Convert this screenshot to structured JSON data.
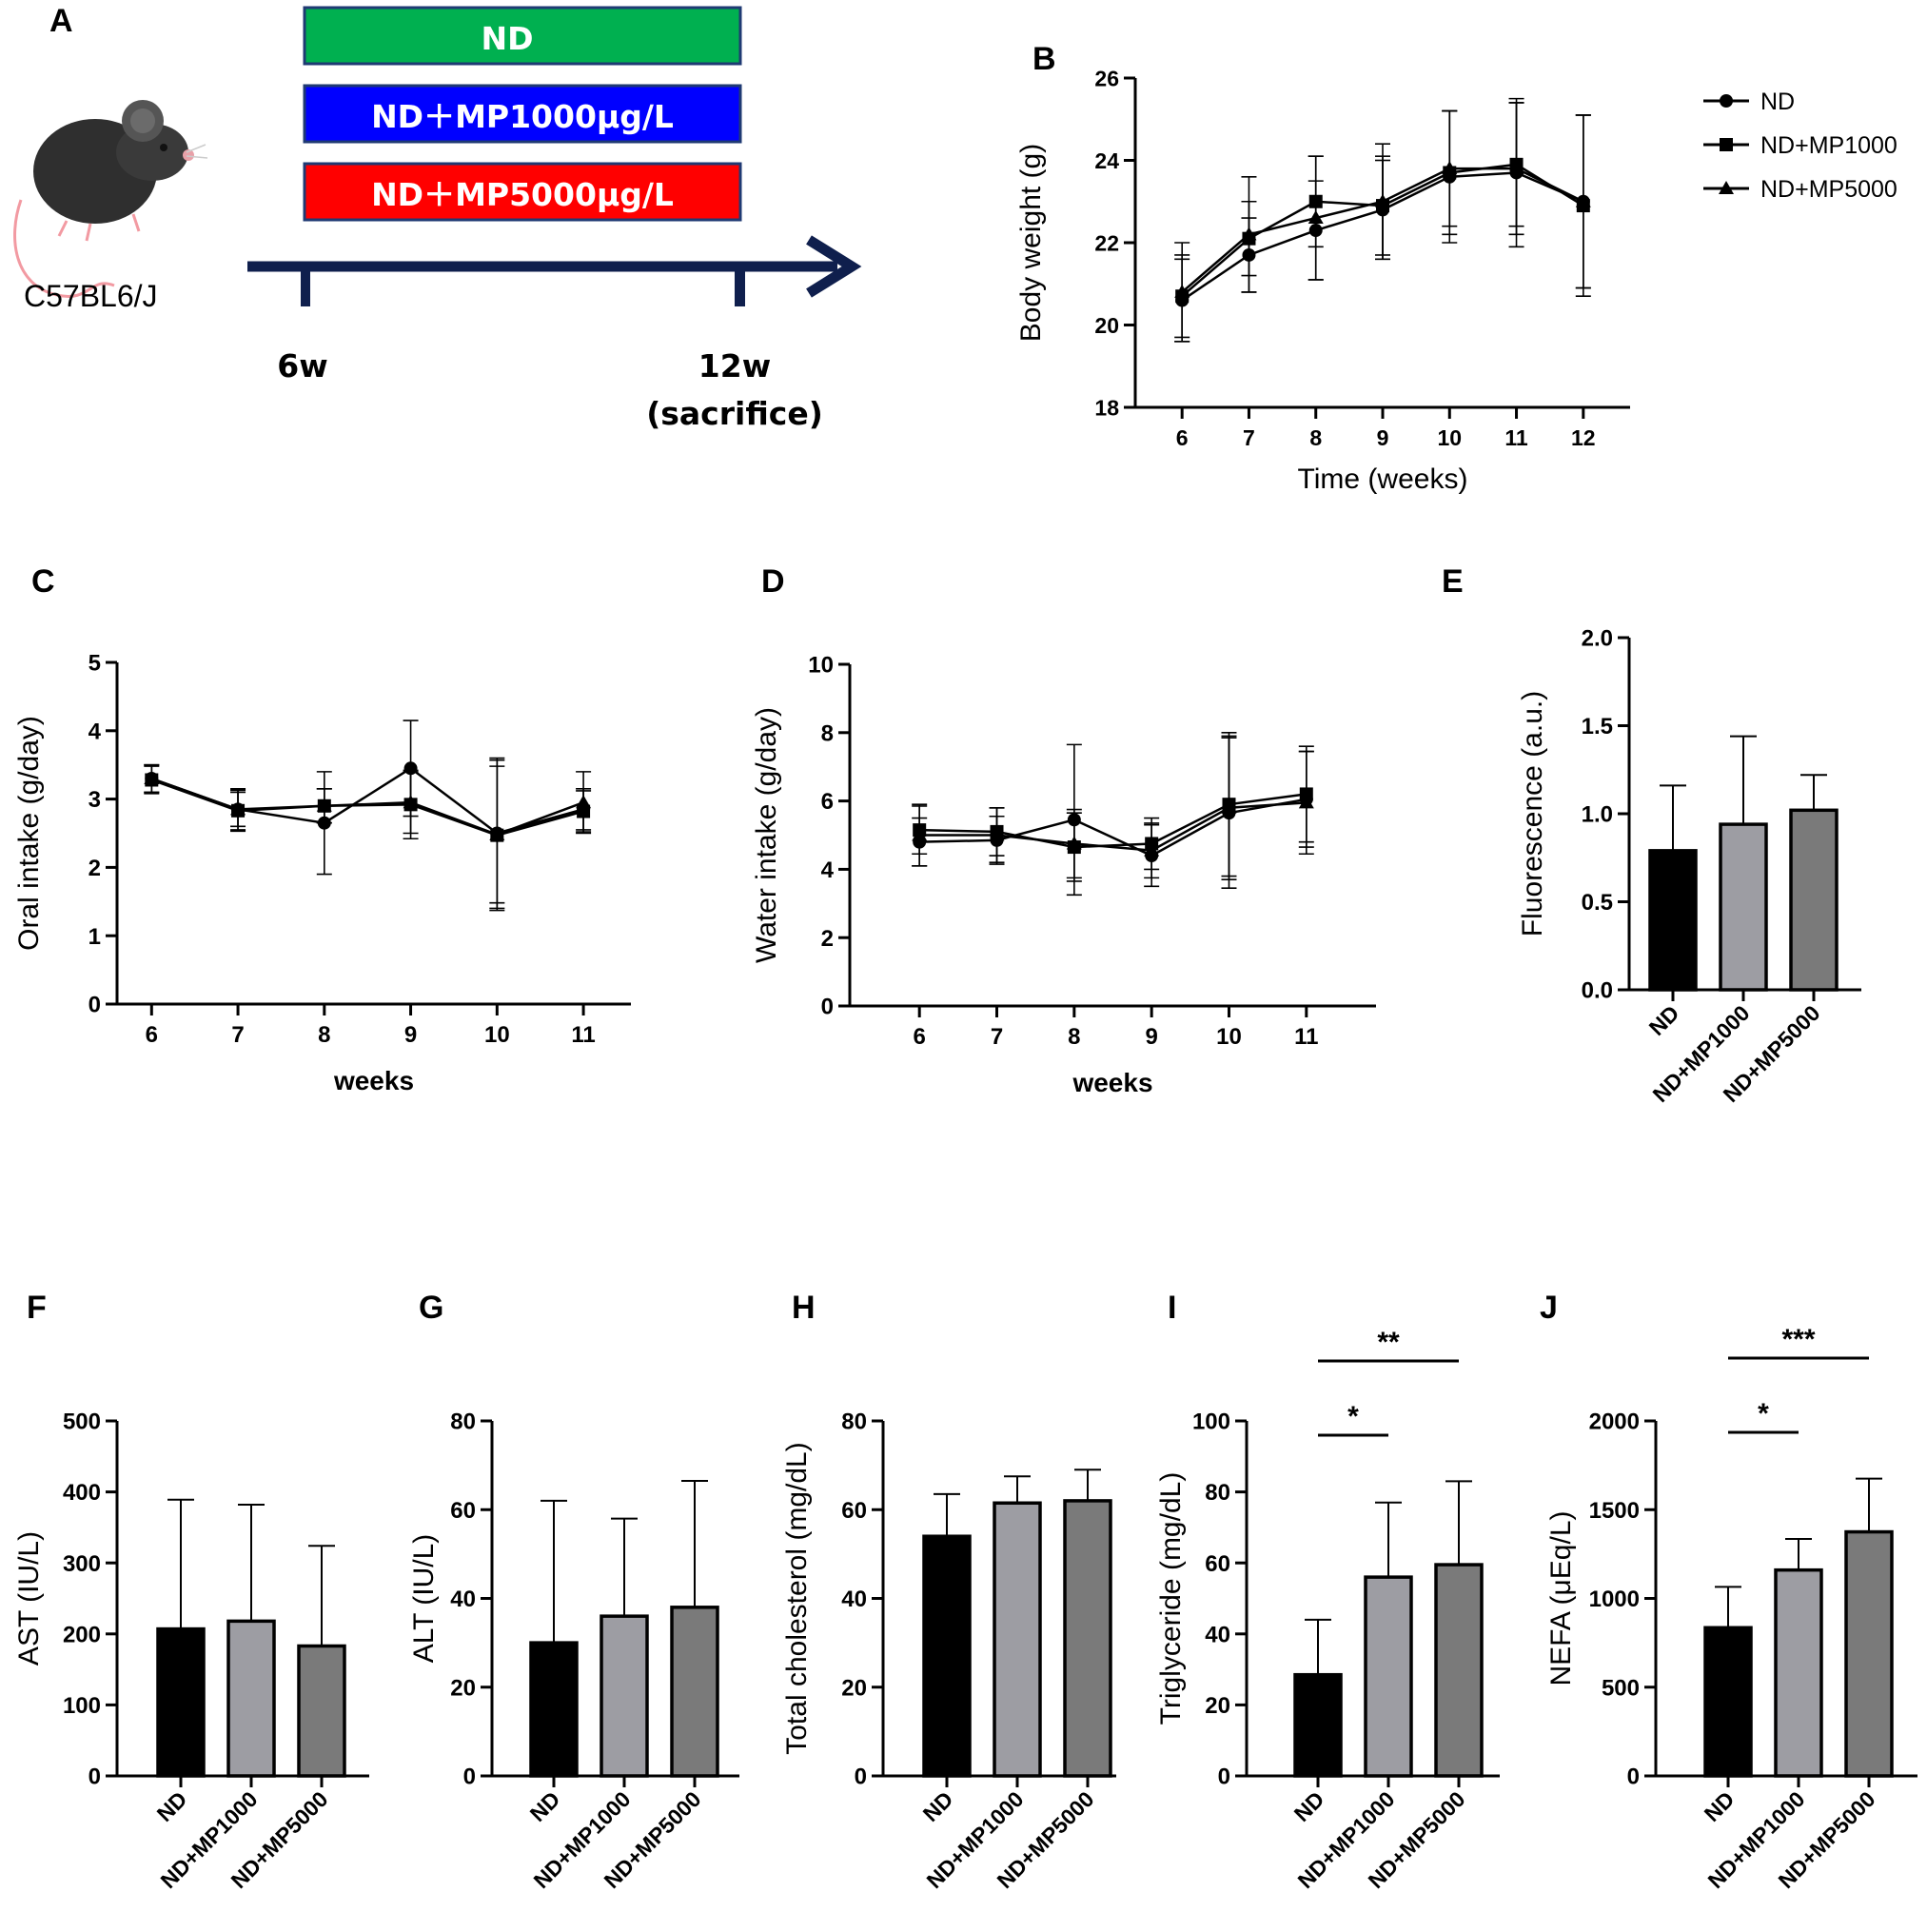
{
  "panel_letters": [
    "A",
    "B",
    "C",
    "D",
    "E",
    "F",
    "G",
    "H",
    "I",
    "J"
  ],
  "colors": {
    "nd_box": "#00b050",
    "mp1000_box": "#0000ff",
    "mp5000_box": "#ff0000",
    "timeline": "#0f1f4d",
    "nd_bar": "#000000",
    "mp1000_bar": "#9d9da3",
    "mp5000_bar": "#7a7a7a"
  },
  "design": {
    "strain": "C57BL6/J",
    "mouse_icon": "mouse-icon",
    "groups": [
      "ND",
      "ND＋MP1000µg/L",
      "ND＋MP5000µg/L"
    ],
    "start_label": "6w",
    "end_label": "12w",
    "end_sub": "(sacrifice)"
  },
  "chart_data": [
    {
      "id": "B",
      "type": "line",
      "xlabel": "Time (weeks)",
      "ylabel": "Body weight (g)",
      "x": [
        6,
        7,
        8,
        9,
        10,
        11,
        12
      ],
      "xlim": [
        5.3,
        12.7
      ],
      "ylim": [
        18,
        26
      ],
      "yticks": [
        18,
        20,
        22,
        24,
        26
      ],
      "legend": "top-right",
      "series": [
        {
          "name": "ND",
          "marker": "circle",
          "values": [
            20.6,
            21.7,
            22.3,
            22.8,
            23.6,
            23.7,
            23.0
          ],
          "err": [
            1.0,
            0.9,
            1.2,
            1.2,
            1.6,
            1.8,
            2.1
          ]
        },
        {
          "name": "ND+MP1000",
          "marker": "square",
          "values": [
            20.7,
            22.1,
            23.0,
            22.9,
            23.7,
            23.9,
            22.9
          ],
          "err": [
            1.0,
            0.9,
            1.1,
            1.2,
            1.5,
            1.5,
            2.2
          ]
        },
        {
          "name": "ND+MP5000",
          "marker": "triangle",
          "values": [
            20.8,
            22.2,
            22.6,
            23.0,
            23.8,
            23.8,
            23.0
          ],
          "err": [
            1.2,
            1.4,
            1.5,
            1.4,
            1.4,
            1.6,
            2.1
          ]
        }
      ]
    },
    {
      "id": "C",
      "type": "line",
      "xlabel": "weeks",
      "ylabel": "Oral intake (g/day)",
      "x": [
        6,
        7,
        8,
        9,
        10,
        11
      ],
      "xlim": [
        5.6,
        11.55
      ],
      "ylim": [
        0,
        5
      ],
      "yticks": [
        0,
        1,
        2,
        3,
        4,
        5
      ],
      "series": [
        {
          "name": "ND",
          "marker": "circle",
          "values": [
            3.3,
            2.85,
            2.65,
            3.45,
            2.5,
            2.85
          ],
          "err": [
            0.2,
            0.3,
            0.75,
            0.7,
            1.1,
            0.3
          ]
        },
        {
          "name": "ND+MP1000",
          "marker": "square",
          "values": [
            3.28,
            2.83,
            2.9,
            2.92,
            2.47,
            2.82
          ],
          "err": [
            0.2,
            0.3,
            0.25,
            0.5,
            1.1,
            0.3
          ]
        },
        {
          "name": "ND+MP5000",
          "marker": "triangle",
          "values": [
            3.3,
            2.85,
            2.9,
            2.95,
            2.48,
            2.95
          ],
          "err": [
            0.2,
            0.25,
            0.25,
            0.45,
            1.0,
            0.45
          ]
        }
      ]
    },
    {
      "id": "D",
      "type": "line",
      "xlabel": "weeks",
      "ylabel": "Water intake (g/day)",
      "x": [
        6,
        7,
        8,
        9,
        10,
        11
      ],
      "xlim": [
        5.1,
        11.9
      ],
      "ylim": [
        0,
        10
      ],
      "yticks": [
        0,
        2,
        4,
        6,
        8,
        10
      ],
      "series": [
        {
          "name": "ND",
          "marker": "circle",
          "values": [
            4.8,
            4.85,
            5.45,
            4.4,
            5.65,
            6.05
          ],
          "err": [
            0.7,
            0.7,
            2.2,
            0.9,
            2.2,
            1.4
          ]
        },
        {
          "name": "ND+MP1000",
          "marker": "square",
          "values": [
            5.15,
            5.1,
            4.65,
            4.75,
            5.9,
            6.2
          ],
          "err": [
            0.7,
            0.7,
            1.0,
            0.75,
            2.1,
            1.4
          ]
        },
        {
          "name": "ND+MP5000",
          "marker": "triangle",
          "values": [
            5.0,
            5.0,
            4.75,
            4.55,
            5.8,
            5.95
          ],
          "err": [
            0.9,
            0.8,
            1.0,
            0.8,
            2.1,
            1.5
          ]
        }
      ]
    },
    {
      "id": "E",
      "type": "bar",
      "ylabel": "Fluorescence (a.u.)",
      "categories": [
        "ND",
        "ND+MP1000",
        "ND+MP5000"
      ],
      "values": [
        0.79,
        0.94,
        1.02
      ],
      "err": [
        0.37,
        0.5,
        0.2
      ],
      "ylim": [
        0,
        2.0
      ],
      "yticks": [
        "0.0",
        "0.5",
        "1.0",
        "1.5",
        "2.0"
      ]
    },
    {
      "id": "F",
      "type": "bar",
      "ylabel": "AST (IU/L)",
      "categories": [
        "ND",
        "ND+MP1000",
        "ND+MP5000"
      ],
      "values": [
        207,
        218,
        183
      ],
      "err": [
        182,
        164,
        141
      ],
      "ylim": [
        0,
        500
      ],
      "yticks": [
        "0",
        "100",
        "200",
        "300",
        "400",
        "500"
      ]
    },
    {
      "id": "G",
      "type": "bar",
      "ylabel": "ALT (IU/L)",
      "categories": [
        "ND",
        "ND+MP1000",
        "ND+MP5000"
      ],
      "values": [
        30,
        36,
        38
      ],
      "err": [
        32,
        22,
        28.5
      ],
      "ylim": [
        0,
        80
      ],
      "yticks": [
        "0",
        "20",
        "40",
        "60",
        "80"
      ]
    },
    {
      "id": "H",
      "type": "bar",
      "ylabel": "Total cholesterol (mg/dL)",
      "categories": [
        "ND",
        "ND+MP1000",
        "ND+MP5000"
      ],
      "values": [
        54,
        61.5,
        62
      ],
      "err": [
        9.5,
        6,
        7
      ],
      "ylim": [
        0,
        80
      ],
      "yticks": [
        "0",
        "20",
        "40",
        "60",
        "80"
      ]
    },
    {
      "id": "I",
      "type": "bar",
      "ylabel": "Triglyceride (mg/dL)",
      "categories": [
        "ND",
        "ND+MP1000",
        "ND+MP5000"
      ],
      "values": [
        28.5,
        56,
        59.5
      ],
      "err": [
        15.5,
        21,
        23.5
      ],
      "ylim": [
        0,
        100
      ],
      "yticks": [
        "0",
        "20",
        "40",
        "60",
        "80",
        "100"
      ],
      "significance": [
        {
          "from": 0,
          "to": 1,
          "label": "*"
        },
        {
          "from": 0,
          "to": 2,
          "label": "**"
        }
      ]
    },
    {
      "id": "J",
      "type": "bar",
      "ylabel": "NEFA (μEq/L)",
      "categories": [
        "ND",
        "ND+MP1000",
        "ND+MP5000"
      ],
      "values": [
        835,
        1160,
        1375
      ],
      "err": [
        230,
        175,
        300
      ],
      "ylim": [
        0,
        2000
      ],
      "yticks": [
        "0",
        "500",
        "1000",
        "1500",
        "2000"
      ],
      "significance": [
        {
          "from": 0,
          "to": 1,
          "label": "*"
        },
        {
          "from": 0,
          "to": 2,
          "label": "***"
        }
      ]
    }
  ]
}
